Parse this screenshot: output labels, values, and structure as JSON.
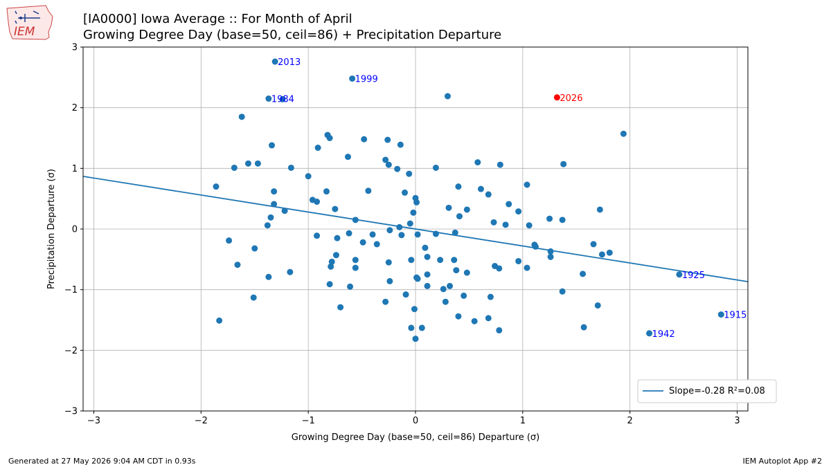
{
  "title_line1": "[IA0000] Iowa Average :: For Month of April",
  "title_line2": "Growing Degree Day (base=50, ceil=86) + Precipitation Departure",
  "logo_text": "IEM",
  "footer_left": "Generated at 27 May 2026 9:04 AM CDT in 0.93s",
  "footer_right": "IEM Autoplot App #2",
  "colors": {
    "point": "#1f77b4",
    "highlight": "#ff0000",
    "label": "#0000ff",
    "grid": "#b0b0b0"
  },
  "chart_data": {
    "type": "scatter",
    "title": "[IA0000] Iowa Average :: For Month of April\nGrowing Degree Day (base=50, ceil=86) + Precipitation Departure",
    "xlabel": "Growing Degree Day (base=50, ceil=86) Departure (σ)",
    "ylabel": "Precipitation Departure (σ)",
    "xlim": [
      -3.1,
      3.1
    ],
    "ylim": [
      -3.0,
      3.0
    ],
    "xticks": [
      "−3",
      "−2",
      "−1",
      "0",
      "1",
      "2",
      "3"
    ],
    "yticks": [
      "−3",
      "−2",
      "−1",
      "0",
      "1",
      "2",
      "3"
    ],
    "grid": true,
    "legend_position": "lower-right",
    "legend_label": "Slope=-0.28 R²=0.08",
    "trendline": {
      "slope": -0.28,
      "intercept": 0.0,
      "r2": 0.08
    },
    "labeled_points": [
      {
        "label": "2013",
        "x": -1.31,
        "y": 2.76
      },
      {
        "label": "1999",
        "x": -0.59,
        "y": 2.48
      },
      {
        "label": "1984",
        "x": -1.37,
        "y": 2.15
      },
      {
        "label": "2026",
        "x": 1.32,
        "y": 2.17,
        "highlight": true
      },
      {
        "label": "1925",
        "x": 2.46,
        "y": -0.75
      },
      {
        "label": "1915",
        "x": 2.85,
        "y": -1.41
      },
      {
        "label": "1942",
        "x": 2.18,
        "y": -1.72
      }
    ],
    "points": [
      [
        -1.24,
        2.14
      ],
      [
        0.3,
        2.19
      ],
      [
        -1.62,
        1.85
      ],
      [
        1.94,
        1.57
      ],
      [
        -0.82,
        1.55
      ],
      [
        -0.8,
        1.5
      ],
      [
        -0.48,
        1.48
      ],
      [
        -0.26,
        1.47
      ],
      [
        -0.14,
        1.39
      ],
      [
        -1.34,
        1.38
      ],
      [
        -0.91,
        1.34
      ],
      [
        -0.63,
        1.19
      ],
      [
        -0.28,
        1.14
      ],
      [
        0.58,
        1.1
      ],
      [
        0.79,
        1.06
      ],
      [
        1.38,
        1.07
      ],
      [
        -0.25,
        1.06
      ],
      [
        -0.17,
        0.99
      ],
      [
        -1.56,
        1.08
      ],
      [
        -1.47,
        1.08
      ],
      [
        -1.69,
        1.01
      ],
      [
        -1.16,
        1.01
      ],
      [
        0.19,
        1.01
      ],
      [
        -0.06,
        0.91
      ],
      [
        -1.0,
        0.87
      ],
      [
        1.04,
        0.73
      ],
      [
        -1.86,
        0.7
      ],
      [
        0.4,
        0.7
      ],
      [
        0.61,
        0.66
      ],
      [
        -0.44,
        0.63
      ],
      [
        -0.83,
        0.62
      ],
      [
        -0.1,
        0.6
      ],
      [
        -1.32,
        0.62
      ],
      [
        0.68,
        0.57
      ],
      [
        0.0,
        0.51
      ],
      [
        0.01,
        0.44
      ],
      [
        -0.96,
        0.48
      ],
      [
        -0.92,
        0.45
      ],
      [
        -1.32,
        0.41
      ],
      [
        0.87,
        0.41
      ],
      [
        0.31,
        0.35
      ],
      [
        -0.75,
        0.33
      ],
      [
        0.48,
        0.32
      ],
      [
        -1.22,
        0.3
      ],
      [
        0.96,
        0.29
      ],
      [
        -0.02,
        0.27
      ],
      [
        0.41,
        0.21
      ],
      [
        -1.35,
        0.19
      ],
      [
        1.72,
        0.32
      ],
      [
        -0.56,
        0.15
      ],
      [
        1.25,
        0.17
      ],
      [
        1.37,
        0.15
      ],
      [
        0.73,
        0.11
      ],
      [
        -0.05,
        0.09
      ],
      [
        0.84,
        0.07
      ],
      [
        1.06,
        0.06
      ],
      [
        -1.38,
        0.06
      ],
      [
        -0.15,
        0.03
      ],
      [
        -0.24,
        -0.02
      ],
      [
        0.37,
        -0.06
      ],
      [
        -0.62,
        -0.07
      ],
      [
        -0.4,
        -0.09
      ],
      [
        0.02,
        -0.09
      ],
      [
        -0.13,
        -0.1
      ],
      [
        -0.92,
        -0.11
      ],
      [
        0.19,
        -0.08
      ],
      [
        -0.73,
        -0.15
      ],
      [
        -1.74,
        -0.19
      ],
      [
        -0.49,
        -0.22
      ],
      [
        -0.36,
        -0.25
      ],
      [
        1.66,
        -0.25
      ],
      [
        1.11,
        -0.26
      ],
      [
        1.12,
        -0.29
      ],
      [
        0.09,
        -0.31
      ],
      [
        -1.5,
        -0.32
      ],
      [
        1.26,
        -0.37
      ],
      [
        1.81,
        -0.39
      ],
      [
        1.74,
        -0.42
      ],
      [
        -0.74,
        -0.43
      ],
      [
        0.11,
        -0.46
      ],
      [
        1.26,
        -0.46
      ],
      [
        0.23,
        -0.51
      ],
      [
        0.36,
        -0.51
      ],
      [
        -0.56,
        -0.51
      ],
      [
        -0.04,
        -0.51
      ],
      [
        -0.78,
        -0.54
      ],
      [
        0.96,
        -0.53
      ],
      [
        -0.25,
        -0.55
      ],
      [
        -1.66,
        -0.59
      ],
      [
        -0.79,
        -0.62
      ],
      [
        0.74,
        -0.61
      ],
      [
        0.78,
        -0.65
      ],
      [
        1.04,
        -0.64
      ],
      [
        -0.56,
        -0.64
      ],
      [
        0.38,
        -0.68
      ],
      [
        -1.17,
        -0.71
      ],
      [
        0.48,
        -0.72
      ],
      [
        1.56,
        -0.74
      ],
      [
        0.11,
        -0.75
      ],
      [
        -1.37,
        -0.79
      ],
      [
        0.01,
        -0.8
      ],
      [
        0.02,
        -0.82
      ],
      [
        -0.24,
        -0.86
      ],
      [
        -0.8,
        -0.91
      ],
      [
        0.11,
        -0.94
      ],
      [
        0.32,
        -0.94
      ],
      [
        -0.61,
        -0.95
      ],
      [
        0.26,
        -0.99
      ],
      [
        1.37,
        -1.03
      ],
      [
        -0.09,
        -1.08
      ],
      [
        0.45,
        -1.1
      ],
      [
        0.7,
        -1.12
      ],
      [
        -1.51,
        -1.13
      ],
      [
        -0.28,
        -1.2
      ],
      [
        0.28,
        -1.2
      ],
      [
        1.7,
        -1.26
      ],
      [
        -0.7,
        -1.29
      ],
      [
        -0.01,
        -1.32
      ],
      [
        0.4,
        -1.44
      ],
      [
        0.68,
        -1.47
      ],
      [
        -1.83,
        -1.51
      ],
      [
        0.55,
        -1.52
      ],
      [
        1.57,
        -1.62
      ],
      [
        -0.04,
        -1.63
      ],
      [
        0.06,
        -1.63
      ],
      [
        0.78,
        -1.67
      ],
      [
        0.0,
        -1.81
      ]
    ]
  }
}
